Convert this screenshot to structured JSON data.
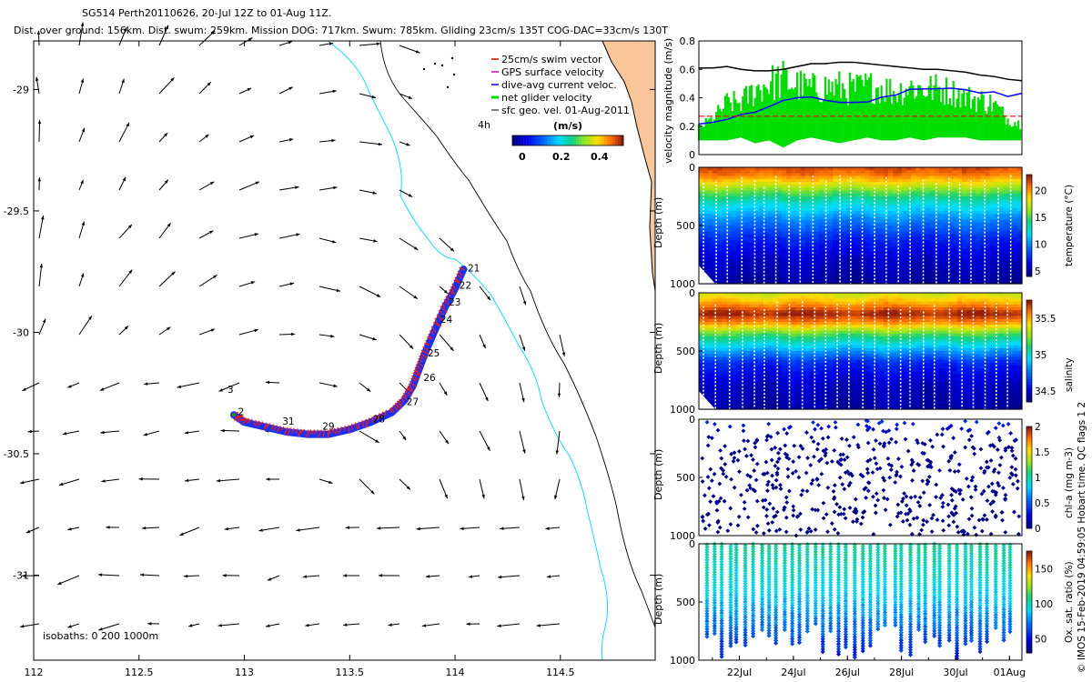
{
  "header": {
    "line1": "SG514 Perth20110626,  20-Jul 12Z to 01-Aug 11Z.",
    "line2": "Dist. over ground: 156km. Dist. swum: 259km. Mission DOG: 717km. Swum: 785km. Gliding 23cm/s 135T COG-DAC=33cm/s 130T"
  },
  "colors": {
    "swim_vector": "#d40000",
    "gps_velocity": "#cc00cc",
    "dive_avg": "#0000ff",
    "net_glider": "#00dd00",
    "geo_vel": "#000000",
    "land": "#f9c69a",
    "coast_cyan": "#00e5ff",
    "track_red": "#ff1a00",
    "track_blue": "#1530ff"
  },
  "chart_data": [
    {
      "type": "scatter",
      "subtype": "map",
      "xlim": [
        112,
        114.95
      ],
      "ylim": [
        -31.35,
        -28.8
      ],
      "x_ticks": [
        112,
        112.5,
        113,
        113.5,
        114,
        114.5
      ],
      "x_tick_labels": [
        "112",
        "112.5",
        "113",
        "113.5",
        "114",
        "114.5"
      ],
      "y_ticks": [
        -29,
        -29.5,
        -30,
        -30.5,
        -31
      ],
      "y_tick_labels": [
        "-29",
        "-29.5",
        "-30",
        "-30.5",
        "-31"
      ],
      "legend": [
        "25cm/s swim vector",
        "GPS surface velocity",
        "dive-avg current veloc.",
        "net glider velocity",
        "sfc geo. vel. 01-Aug-2011"
      ],
      "legend_placement": "top-right",
      "interval_label": "4h",
      "colorbar": {
        "title": "(m/s)",
        "ticks": [
          0,
          0.2,
          0.4
        ],
        "tick_labels": [
          "0",
          "0.2",
          "0.4"
        ],
        "range": [
          0,
          0.5
        ]
      },
      "isobath_label": "isobaths: 0   200  1000m",
      "track": {
        "x": [
          114.04,
          114.0,
          113.95,
          113.9,
          113.86,
          113.83,
          113.8,
          113.76,
          113.7,
          113.6,
          113.5,
          113.4,
          113.3,
          113.2,
          113.1,
          113.0,
          112.95
        ],
        "y": [
          -29.74,
          -29.82,
          -29.9,
          -30.0,
          -30.08,
          -30.15,
          -30.22,
          -30.28,
          -30.33,
          -30.37,
          -30.4,
          -30.42,
          -30.42,
          -30.41,
          -30.39,
          -30.37,
          -30.34
        ]
      },
      "day_labels": [
        {
          "text": "21",
          "x": 114.06,
          "y": -29.75
        },
        {
          "text": "22",
          "x": 114.02,
          "y": -29.82
        },
        {
          "text": "23",
          "x": 113.97,
          "y": -29.89
        },
        {
          "text": "24",
          "x": 113.93,
          "y": -29.96
        },
        {
          "text": "25",
          "x": 113.87,
          "y": -30.1
        },
        {
          "text": "26",
          "x": 113.85,
          "y": -30.2
        },
        {
          "text": "27",
          "x": 113.77,
          "y": -30.3
        },
        {
          "text": "28",
          "x": 113.61,
          "y": -30.37
        },
        {
          "text": "29",
          "x": 113.37,
          "y": -30.4
        },
        {
          "text": "31",
          "x": 113.18,
          "y": -30.38
        },
        {
          "text": "2",
          "x": 112.97,
          "y": -30.34
        },
        {
          "text": "3",
          "x": 112.92,
          "y": -30.25
        }
      ]
    },
    {
      "type": "line",
      "ylabel": "velocity magnitude (m/s)",
      "ylim": [
        0,
        0.8
      ],
      "y_ticks": [
        0,
        0.2,
        0.4,
        0.6,
        0.8
      ],
      "y_tick_labels": [
        "0",
        "0.2",
        "0.4",
        "0.6",
        "0.8"
      ],
      "series": [
        {
          "values": [
            0.61,
            0.61,
            0.62,
            0.6,
            0.59,
            0.59,
            0.6,
            0.62,
            0.64,
            0.64,
            0.65,
            0.65,
            0.64,
            0.63,
            0.62,
            0.61,
            0.6,
            0.6,
            0.59,
            0.58,
            0.56,
            0.55,
            0.53,
            0.52
          ],
          "color": "#000000"
        },
        {
          "values": [
            0.23,
            0.24,
            0.26,
            0.28,
            0.3,
            0.33,
            0.37,
            0.4,
            0.4,
            0.39,
            0.38,
            0.36,
            0.38,
            0.41,
            0.43,
            0.45,
            0.45,
            0.47,
            0.48,
            0.47,
            0.44,
            0.43,
            0.41,
            0.44
          ],
          "color": "#0000ff"
        },
        {
          "values": [
            0.27,
            0.27,
            0.27,
            0.27,
            0.27,
            0.27,
            0.27,
            0.27,
            0.27,
            0.27,
            0.27,
            0.27,
            0.27,
            0.27,
            0.27,
            0.27,
            0.27,
            0.27,
            0.27,
            0.27,
            0.27,
            0.27,
            0.27,
            0.27
          ],
          "color": "#ff0000"
        }
      ],
      "net_velocity_range": {
        "low": [
          0.1,
          0.1,
          0.1,
          0.12,
          0.08,
          0.1,
          0.05,
          0.1,
          0.12,
          0.1,
          0.08,
          0.1,
          0.12,
          0.1,
          0.1,
          0.12,
          0.1,
          0.12,
          0.12,
          0.12,
          0.1,
          0.1,
          0.1,
          0.1
        ],
        "high": [
          0.22,
          0.3,
          0.45,
          0.45,
          0.58,
          0.64,
          0.68,
          0.62,
          0.58,
          0.6,
          0.6,
          0.58,
          0.6,
          0.6,
          0.55,
          0.6,
          0.58,
          0.58,
          0.55,
          0.5,
          0.48,
          0.44,
          0.3,
          0.25
        ],
        "color": "#00dd00"
      }
    },
    {
      "type": "heatmap",
      "variable": "temperature",
      "ylabel": "Depth (m)",
      "ylim": [
        1000,
        0
      ],
      "y_ticks": [
        0,
        500,
        1000
      ],
      "colorbar_label": "temperature (°C)",
      "colorbar_ticks": [
        5,
        10,
        15,
        20
      ],
      "clim": [
        4,
        23
      ],
      "profile": [
        [
          0,
          22
        ],
        [
          60,
          21
        ],
        [
          120,
          19
        ],
        [
          200,
          16
        ],
        [
          300,
          13
        ],
        [
          450,
          10
        ],
        [
          600,
          7.5
        ],
        [
          800,
          5.5
        ],
        [
          1000,
          4.5
        ]
      ]
    },
    {
      "type": "heatmap",
      "variable": "salinity",
      "ylabel": "Depth (m)",
      "ylim": [
        1000,
        0
      ],
      "y_ticks": [
        0,
        500,
        1000
      ],
      "colorbar_label": "salinity",
      "colorbar_ticks": [
        34.5,
        35,
        35.5
      ],
      "colorbar_tick_labels": [
        "34.5",
        "35",
        "35.5"
      ],
      "clim": [
        34.35,
        35.75
      ],
      "profile": [
        [
          0,
          35.35
        ],
        [
          80,
          35.5
        ],
        [
          180,
          35.75
        ],
        [
          260,
          35.55
        ],
        [
          350,
          35.2
        ],
        [
          450,
          34.95
        ],
        [
          600,
          34.6
        ],
        [
          800,
          34.45
        ],
        [
          1000,
          34.4
        ]
      ]
    },
    {
      "type": "scatter",
      "variable": "chl-a",
      "ylabel": "Depth (m)",
      "ylim": [
        1000,
        0
      ],
      "y_ticks": [
        0,
        500,
        1000
      ],
      "colorbar_label": "chl-a (mg m-3)",
      "colorbar_ticks": [
        0,
        0.5,
        1,
        1.5,
        2
      ],
      "colorbar_tick_labels": [
        "0",
        "0.5",
        "1",
        "1.5",
        "2"
      ],
      "clim": [
        0,
        2
      ],
      "profile": [
        [
          0,
          0.45
        ],
        [
          60,
          0.3
        ],
        [
          150,
          0.05
        ],
        [
          1000,
          0
        ]
      ]
    },
    {
      "type": "scatter",
      "variable": "Ox. sat. ratio",
      "ylabel": "Depth (m)",
      "ylim": [
        1000,
        0
      ],
      "y_ticks": [
        0,
        500,
        1000
      ],
      "colorbar_label": "Ox. sat. ratio (%)",
      "colorbar_ticks": [
        50,
        100,
        150
      ],
      "clim": [
        30,
        175
      ],
      "profile": [
        [
          0,
          105
        ],
        [
          200,
          100
        ],
        [
          400,
          92
        ],
        [
          600,
          80
        ],
        [
          800,
          65
        ],
        [
          1000,
          50
        ]
      ],
      "x_tick_labels": [
        "22Jul",
        "24Jul",
        "26Jul",
        "28Jul",
        "30Jul",
        "01Aug"
      ]
    }
  ],
  "side_note": "© IMOS 15-Feb-2019 04:59:05 Hobart time. QC flags 1  2"
}
